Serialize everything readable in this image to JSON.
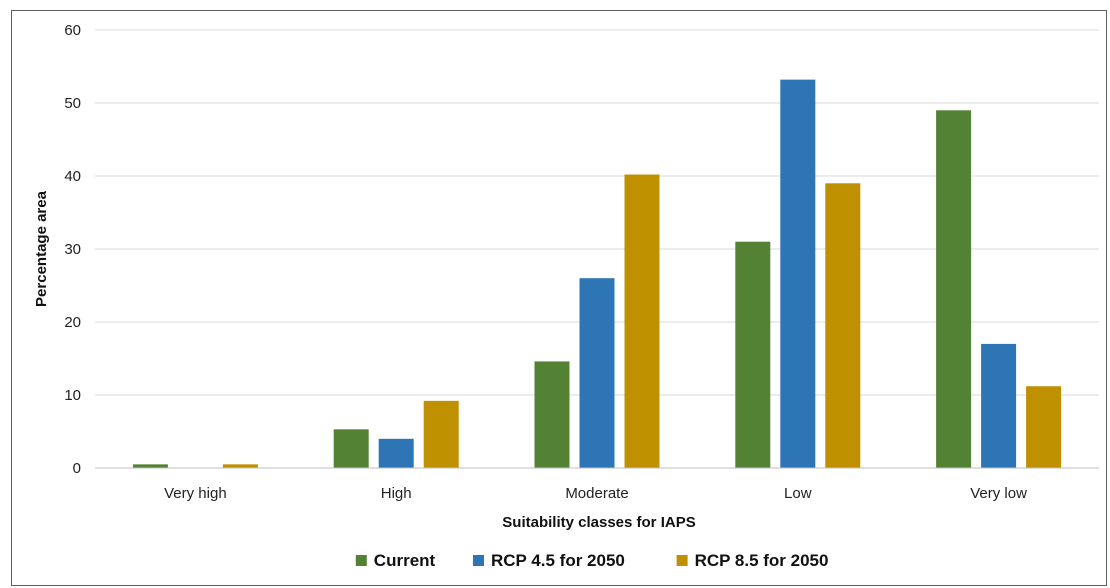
{
  "chart_data": {
    "type": "bar",
    "title": "",
    "xlabel": "Suitability classes for IAPS",
    "ylabel": "Percentage area",
    "categories": [
      "Very high",
      "High",
      "Moderate",
      "Low",
      "Very low"
    ],
    "ylim": [
      0,
      60
    ],
    "yticks": [
      0,
      10,
      20,
      30,
      40,
      50,
      60
    ],
    "grid": true,
    "legend_position": "bottom",
    "series": [
      {
        "name": "Current",
        "color": "#548235",
        "values": [
          0.5,
          5.3,
          14.6,
          31.0,
          49.0
        ]
      },
      {
        "name": "RCP 4.5 for 2050",
        "color": "#2e75b6",
        "values": [
          0.0,
          4.0,
          26.0,
          53.2,
          17.0
        ]
      },
      {
        "name": "RCP 8.5 for 2050",
        "color": "#bf9000",
        "values": [
          0.5,
          9.2,
          40.2,
          39.0,
          11.2
        ]
      }
    ]
  }
}
